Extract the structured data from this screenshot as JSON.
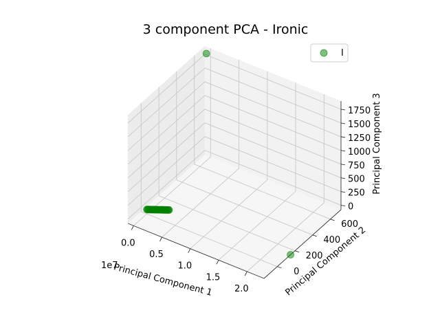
{
  "chart_data": {
    "type": "scatter",
    "projection": "3d",
    "title": "3 component PCA - Ironic",
    "xlabel": "Principal Component 1",
    "ylabel": "Principal Component 2",
    "zlabel": "Principal Component 3",
    "x_offset_label": "1e7",
    "xticks": [
      "0.0",
      "0.5",
      "1.0",
      "1.5",
      "2.0"
    ],
    "yticks": [
      "0",
      "200",
      "400",
      "600"
    ],
    "zticks": [
      "0",
      "250",
      "500",
      "750",
      "1000",
      "1250",
      "1500",
      "1750"
    ],
    "xlim": [
      -0.1,
      2.3
    ],
    "ylim": [
      -150,
      720
    ],
    "zlim": [
      -80,
      1900
    ],
    "grid": true,
    "legend_position": "top-right",
    "marker_color": "#008000",
    "series": [
      {
        "name": "I",
        "points": [
          {
            "x": 0.02,
            "y": 660,
            "z": 1900
          },
          {
            "x": 2.3,
            "y": 150,
            "z": -80
          },
          {
            "x": 0.0,
            "y": 0,
            "z": 0
          },
          {
            "x": 0.01,
            "y": 2,
            "z": 1
          },
          {
            "x": 0.02,
            "y": 4,
            "z": 2
          },
          {
            "x": 0.03,
            "y": 6,
            "z": 3
          },
          {
            "x": 0.04,
            "y": 8,
            "z": 4
          },
          {
            "x": 0.05,
            "y": 10,
            "z": 5
          },
          {
            "x": 0.06,
            "y": 12,
            "z": 6
          },
          {
            "x": 0.07,
            "y": 14,
            "z": 7
          },
          {
            "x": 0.08,
            "y": 16,
            "z": 8
          },
          {
            "x": 0.09,
            "y": 18,
            "z": 9
          },
          {
            "x": 0.1,
            "y": 20,
            "z": 10
          },
          {
            "x": 0.11,
            "y": 22,
            "z": 11
          },
          {
            "x": 0.12,
            "y": 24,
            "z": 12
          },
          {
            "x": 0.13,
            "y": 26,
            "z": 13
          },
          {
            "x": 0.14,
            "y": 28,
            "z": 14
          },
          {
            "x": 0.15,
            "y": 30,
            "z": 15
          },
          {
            "x": 0.16,
            "y": 32,
            "z": 16
          },
          {
            "x": 0.17,
            "y": 34,
            "z": 17
          },
          {
            "x": 0.18,
            "y": 36,
            "z": 18
          },
          {
            "x": 0.19,
            "y": 38,
            "z": 19
          },
          {
            "x": 0.2,
            "y": 40,
            "z": 20
          },
          {
            "x": 0.21,
            "y": 42,
            "z": 21
          },
          {
            "x": 0.22,
            "y": 44,
            "z": 22
          },
          {
            "x": 0.23,
            "y": 46,
            "z": 23
          },
          {
            "x": 0.24,
            "y": 48,
            "z": 24
          },
          {
            "x": 0.25,
            "y": 50,
            "z": 25
          },
          {
            "x": 0.26,
            "y": 52,
            "z": 26
          },
          {
            "x": 0.27,
            "y": 54,
            "z": 27
          },
          {
            "x": 0.28,
            "y": 56,
            "z": 28
          },
          {
            "x": 0.29,
            "y": 58,
            "z": 29
          },
          {
            "x": 0.3,
            "y": 60,
            "z": 30
          }
        ]
      }
    ]
  }
}
